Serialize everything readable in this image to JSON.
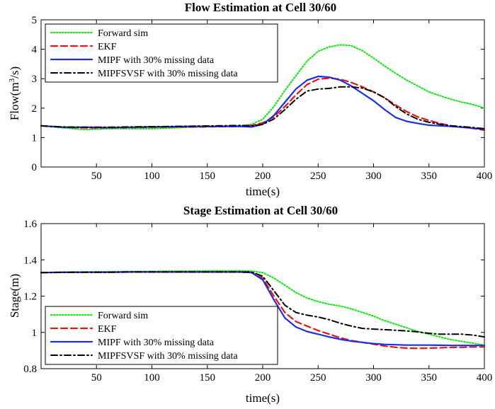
{
  "chart_data": [
    {
      "type": "line",
      "title": "Flow Estimation at Cell 30/60",
      "xlabel": "time(s)",
      "ylabel_prefix": "Flow(m",
      "ylabel_sup": "3",
      "ylabel_suffix": "/s)",
      "xlim": [
        0,
        400
      ],
      "ylim": [
        0,
        5
      ],
      "xticks": [
        50,
        100,
        150,
        200,
        250,
        300,
        350,
        400
      ],
      "yticks": [
        0,
        1,
        2,
        3,
        4,
        5
      ],
      "xtick_labels": [
        "50",
        "100",
        "150",
        "200",
        "250",
        "300",
        "350",
        "400"
      ],
      "ytick_labels": [
        "0",
        "1",
        "2",
        "3",
        "4",
        "5"
      ],
      "legend_position": "top-left",
      "series": [
        {
          "name": "Forward sim",
          "color": "#00ee00",
          "style": "dotted",
          "x": [
            0,
            20,
            40,
            60,
            80,
            100,
            120,
            140,
            160,
            180,
            190,
            200,
            210,
            220,
            230,
            240,
            250,
            260,
            270,
            280,
            290,
            300,
            310,
            320,
            330,
            340,
            350,
            360,
            370,
            380,
            390,
            400
          ],
          "y": [
            1.4,
            1.33,
            1.27,
            1.3,
            1.3,
            1.3,
            1.33,
            1.36,
            1.38,
            1.4,
            1.45,
            1.62,
            2.05,
            2.6,
            3.1,
            3.6,
            3.93,
            4.08,
            4.15,
            4.12,
            3.95,
            3.7,
            3.43,
            3.18,
            2.95,
            2.75,
            2.55,
            2.42,
            2.3,
            2.2,
            2.12,
            2.0
          ]
        },
        {
          "name": "EKF",
          "color": "#ee1111",
          "style": "dashed",
          "x": [
            0,
            20,
            40,
            60,
            80,
            100,
            120,
            140,
            160,
            180,
            190,
            200,
            210,
            220,
            230,
            240,
            250,
            260,
            270,
            280,
            290,
            300,
            310,
            320,
            330,
            340,
            350,
            360,
            370,
            380,
            390,
            400
          ],
          "y": [
            1.4,
            1.35,
            1.33,
            1.33,
            1.34,
            1.35,
            1.36,
            1.36,
            1.37,
            1.38,
            1.41,
            1.5,
            1.7,
            2.05,
            2.45,
            2.8,
            2.98,
            3.02,
            2.98,
            2.87,
            2.72,
            2.55,
            2.35,
            2.1,
            1.88,
            1.7,
            1.58,
            1.48,
            1.4,
            1.35,
            1.31,
            1.25
          ]
        },
        {
          "name": "MIPF with 30% missing data",
          "color": "#1a2ee8",
          "style": "solid",
          "x": [
            0,
            20,
            40,
            60,
            80,
            100,
            120,
            140,
            160,
            180,
            190,
            200,
            210,
            220,
            230,
            240,
            250,
            260,
            270,
            280,
            290,
            300,
            310,
            320,
            330,
            340,
            350,
            360,
            370,
            380,
            390,
            400
          ],
          "y": [
            1.4,
            1.35,
            1.35,
            1.34,
            1.35,
            1.36,
            1.37,
            1.38,
            1.38,
            1.38,
            1.36,
            1.45,
            1.75,
            2.2,
            2.65,
            2.95,
            3.08,
            3.05,
            2.95,
            2.75,
            2.5,
            2.25,
            1.95,
            1.68,
            1.55,
            1.48,
            1.42,
            1.4,
            1.38,
            1.35,
            1.32,
            1.28
          ]
        },
        {
          "name": "MIPFSVSF with 30% missing data",
          "color": "#000000",
          "style": "dashdot",
          "x": [
            0,
            20,
            40,
            60,
            80,
            100,
            120,
            140,
            160,
            180,
            190,
            200,
            210,
            220,
            230,
            240,
            250,
            260,
            270,
            280,
            290,
            300,
            310,
            320,
            330,
            340,
            350,
            360,
            370,
            380,
            390,
            400
          ],
          "y": [
            1.4,
            1.36,
            1.35,
            1.35,
            1.36,
            1.37,
            1.38,
            1.39,
            1.4,
            1.41,
            1.4,
            1.45,
            1.63,
            1.95,
            2.3,
            2.58,
            2.65,
            2.67,
            2.72,
            2.72,
            2.68,
            2.55,
            2.35,
            2.05,
            1.8,
            1.62,
            1.52,
            1.45,
            1.4,
            1.37,
            1.34,
            1.3
          ]
        }
      ]
    },
    {
      "type": "line",
      "title": "Stage Estimation at Cell 30/60",
      "xlabel": "time(s)",
      "ylabel": "Stage(m)",
      "xlim": [
        0,
        400
      ],
      "ylim": [
        0.8,
        1.6
      ],
      "xticks": [
        50,
        100,
        150,
        200,
        250,
        300,
        350,
        400
      ],
      "yticks": [
        0.8,
        1,
        1.2,
        1.4,
        1.6
      ],
      "xtick_labels": [
        "50",
        "100",
        "150",
        "200",
        "250",
        "300",
        "350",
        "400"
      ],
      "ytick_labels": [
        "0.8",
        "1",
        "1.2",
        "1.4",
        "1.6"
      ],
      "legend_position": "bottom-left",
      "series": [
        {
          "name": "Forward sim",
          "color": "#00ee00",
          "style": "dotted",
          "x": [
            0,
            20,
            40,
            60,
            80,
            100,
            120,
            140,
            160,
            180,
            190,
            200,
            210,
            220,
            230,
            240,
            250,
            260,
            270,
            280,
            290,
            300,
            310,
            320,
            330,
            340,
            350,
            360,
            370,
            380,
            390,
            400
          ],
          "y": [
            1.33,
            1.333,
            1.334,
            1.335,
            1.336,
            1.337,
            1.338,
            1.339,
            1.34,
            1.34,
            1.338,
            1.33,
            1.3,
            1.26,
            1.22,
            1.19,
            1.17,
            1.155,
            1.145,
            1.13,
            1.11,
            1.09,
            1.065,
            1.045,
            1.025,
            1.005,
            0.99,
            0.975,
            0.96,
            0.95,
            0.94,
            0.93
          ]
        },
        {
          "name": "EKF",
          "color": "#ee1111",
          "style": "dashed",
          "x": [
            0,
            20,
            40,
            60,
            80,
            100,
            120,
            140,
            160,
            180,
            190,
            200,
            210,
            220,
            230,
            240,
            250,
            260,
            270,
            280,
            290,
            300,
            310,
            320,
            330,
            340,
            350,
            360,
            370,
            380,
            390,
            400
          ],
          "y": [
            1.33,
            1.331,
            1.332,
            1.332,
            1.333,
            1.333,
            1.333,
            1.333,
            1.333,
            1.333,
            1.33,
            1.3,
            1.2,
            1.11,
            1.06,
            1.035,
            1.01,
            0.99,
            0.97,
            0.955,
            0.945,
            0.935,
            0.925,
            0.918,
            0.913,
            0.912,
            0.913,
            0.915,
            0.917,
            0.918,
            0.92,
            0.92
          ]
        },
        {
          "name": "MIPF with 30% missing data",
          "color": "#1a2ee8",
          "style": "solid",
          "x": [
            0,
            20,
            40,
            60,
            80,
            100,
            120,
            140,
            160,
            180,
            190,
            200,
            210,
            220,
            230,
            240,
            250,
            260,
            270,
            280,
            290,
            300,
            310,
            320,
            330,
            340,
            350,
            360,
            370,
            380,
            390,
            400
          ],
          "y": [
            1.33,
            1.331,
            1.332,
            1.332,
            1.333,
            1.333,
            1.333,
            1.333,
            1.333,
            1.333,
            1.33,
            1.29,
            1.18,
            1.08,
            1.03,
            1.005,
            0.99,
            0.975,
            0.962,
            0.952,
            0.945,
            0.938,
            0.934,
            0.932,
            0.93,
            0.93,
            0.93,
            0.929,
            0.928,
            0.928,
            0.928,
            0.928
          ]
        },
        {
          "name": "MIPFSVSF with 30% missing data",
          "color": "#000000",
          "style": "dashdot",
          "x": [
            0,
            20,
            40,
            60,
            80,
            100,
            120,
            140,
            160,
            180,
            190,
            200,
            210,
            220,
            230,
            240,
            250,
            260,
            270,
            280,
            290,
            300,
            310,
            320,
            330,
            340,
            350,
            360,
            370,
            380,
            390,
            400
          ],
          "y": [
            1.33,
            1.331,
            1.332,
            1.332,
            1.333,
            1.333,
            1.333,
            1.333,
            1.333,
            1.333,
            1.333,
            1.31,
            1.23,
            1.15,
            1.11,
            1.095,
            1.085,
            1.07,
            1.05,
            1.035,
            1.022,
            1.018,
            1.015,
            1.012,
            1.008,
            1.003,
            0.995,
            0.99,
            0.99,
            0.99,
            0.985,
            0.975
          ]
        }
      ]
    }
  ]
}
